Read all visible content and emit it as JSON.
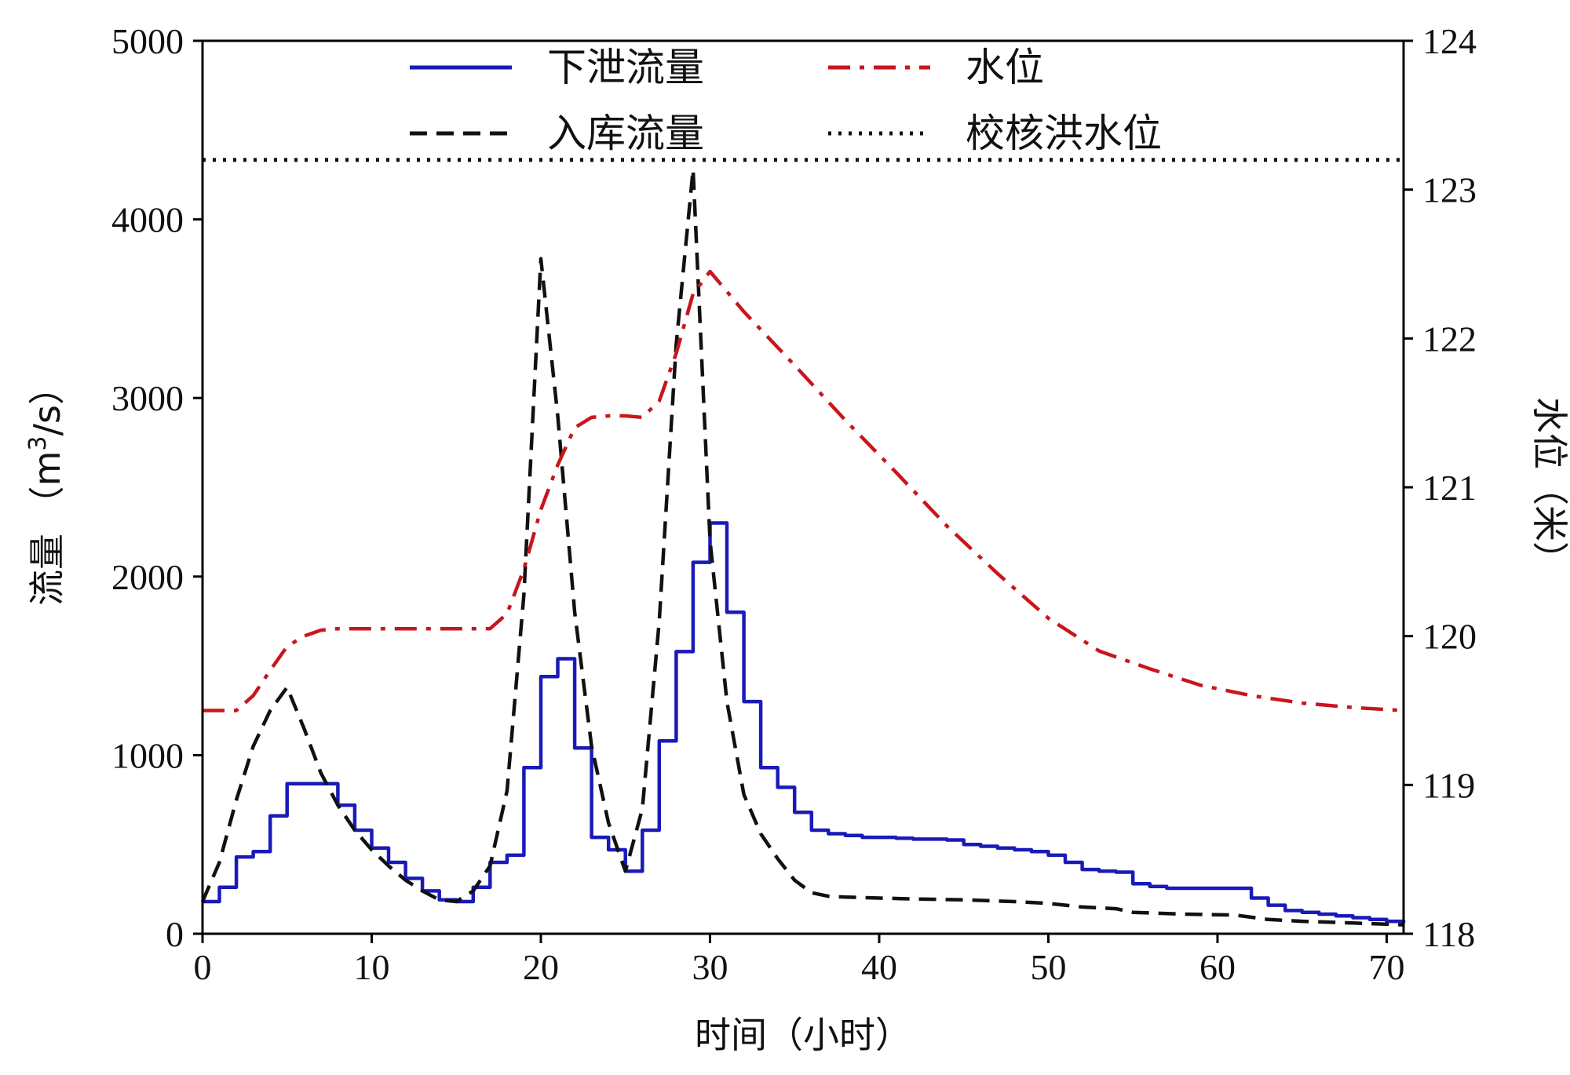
{
  "chart_data": {
    "type": "line",
    "title": "",
    "xlabel": "时间（小时）",
    "ylabel": "流量（m³/s）",
    "ylabel_parts": {
      "prefix": "流量 （m",
      "sup": "3",
      "suffix": "/s）"
    },
    "y2label": "水位（米）",
    "xlim": [
      0,
      71
    ],
    "ylim": [
      0,
      5000
    ],
    "y2lim": [
      118,
      124
    ],
    "xticks": [
      0,
      10,
      20,
      30,
      40,
      50,
      60,
      70
    ],
    "yticks": [
      0,
      1000,
      2000,
      3000,
      4000,
      5000
    ],
    "y2ticks": [
      118,
      119,
      120,
      121,
      122,
      123,
      124
    ],
    "xtick_labels": [
      "0",
      "10",
      "20",
      "30",
      "40",
      "50",
      "60",
      "70"
    ],
    "ytick_labels": [
      "0",
      "1000",
      "2000",
      "3000",
      "4000",
      "5000"
    ],
    "y2tick_labels": [
      "118",
      "119",
      "120",
      "121",
      "122",
      "123",
      "124"
    ],
    "grid": false,
    "legend_position": "top",
    "series": [
      {
        "name": "下泄流量",
        "axis": "left",
        "style": "solid",
        "step": true,
        "color": "#1a1ab8",
        "x": [
          0,
          1,
          2,
          3,
          4,
          5,
          6,
          7,
          8,
          9,
          10,
          11,
          12,
          13,
          14,
          15,
          16,
          17,
          18,
          19,
          20,
          21,
          22,
          23,
          24,
          25,
          26,
          27,
          28,
          29,
          30,
          31,
          32,
          33,
          34,
          35,
          36,
          37,
          38,
          39,
          40,
          41,
          42,
          43,
          44,
          45,
          46,
          47,
          48,
          49,
          50,
          51,
          52,
          53,
          54,
          55,
          56,
          57,
          58,
          59,
          60,
          61,
          62,
          63,
          64,
          65,
          66,
          67,
          68,
          69,
          70,
          71
        ],
        "values": [
          180,
          260,
          430,
          460,
          660,
          840,
          840,
          840,
          720,
          580,
          480,
          400,
          310,
          240,
          190,
          180,
          260,
          400,
          440,
          930,
          1440,
          1540,
          1040,
          540,
          470,
          350,
          580,
          1080,
          1580,
          2080,
          2300,
          1800,
          1300,
          930,
          820,
          680,
          580,
          560,
          550,
          540,
          540,
          535,
          530,
          530,
          525,
          500,
          490,
          480,
          470,
          460,
          440,
          400,
          360,
          350,
          345,
          280,
          265,
          255,
          255,
          255,
          255,
          255,
          200,
          160,
          130,
          120,
          110,
          100,
          90,
          80,
          70,
          60
        ]
      },
      {
        "name": "入库流量",
        "axis": "left",
        "style": "dashed",
        "step": false,
        "color": "#111111",
        "x": [
          0,
          1,
          2,
          3,
          4,
          5,
          6,
          7,
          8,
          9,
          10,
          11,
          12,
          13,
          14,
          15,
          16,
          17,
          18,
          19,
          20,
          21,
          22,
          23,
          24,
          25,
          26,
          27,
          28,
          29,
          30,
          31,
          32,
          33,
          34,
          35,
          36,
          37,
          38,
          40,
          42,
          45,
          48,
          50,
          52,
          54,
          55,
          58,
          61,
          63,
          65,
          68,
          71
        ],
        "values": [
          180,
          400,
          750,
          1050,
          1250,
          1380,
          1150,
          900,
          720,
          580,
          470,
          380,
          300,
          240,
          190,
          180,
          240,
          380,
          800,
          1900,
          3780,
          2900,
          1800,
          1050,
          620,
          350,
          700,
          1750,
          3300,
          4280,
          2200,
          1300,
          780,
          560,
          420,
          300,
          230,
          210,
          205,
          200,
          195,
          190,
          180,
          170,
          150,
          140,
          120,
          110,
          105,
          80,
          70,
          60,
          50
        ]
      },
      {
        "name": "水位",
        "axis": "right",
        "style": "dashdot",
        "step": false,
        "color": "#c8161d",
        "x": [
          0,
          1,
          2,
          3,
          4,
          5,
          6,
          7,
          8,
          10,
          12,
          14,
          16,
          17,
          18,
          19,
          20,
          21,
          22,
          23,
          24,
          25,
          26,
          27,
          28,
          29,
          30,
          32,
          35,
          38,
          41,
          44,
          47,
          50,
          53,
          56,
          59,
          62,
          65,
          68,
          71
        ],
        "values": [
          119.5,
          119.5,
          119.5,
          119.6,
          119.77,
          119.93,
          120.0,
          120.04,
          120.05,
          120.05,
          120.05,
          120.05,
          120.05,
          120.05,
          120.15,
          120.45,
          120.85,
          121.15,
          121.4,
          121.47,
          121.48,
          121.48,
          121.47,
          121.58,
          121.9,
          122.3,
          122.45,
          122.18,
          121.82,
          121.45,
          121.1,
          120.74,
          120.42,
          120.12,
          119.9,
          119.78,
          119.67,
          119.6,
          119.55,
          119.52,
          119.5
        ]
      },
      {
        "name": "校核洪水位",
        "axis": "right",
        "style": "dotted",
        "step": false,
        "color": "#111111",
        "x": [
          0,
          71
        ],
        "values": [
          123.2,
          123.2
        ]
      }
    ]
  }
}
